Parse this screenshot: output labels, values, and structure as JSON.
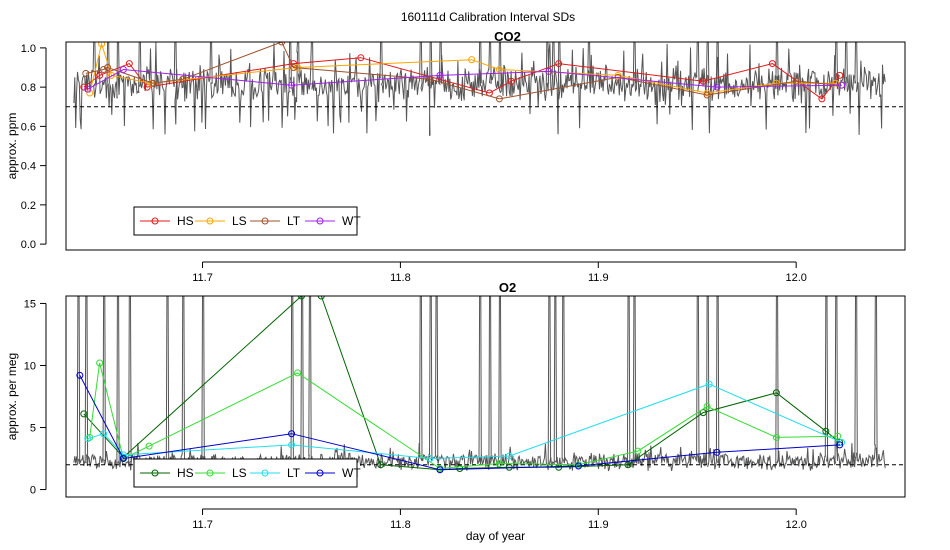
{
  "chart_data": [
    {
      "type": "line",
      "panel_id": "co2",
      "suptitle": "160111d   Calibration Interval SDs",
      "title": "CO2",
      "xlabel": "",
      "ylabel": "approx. ppm",
      "xlim": [
        11.631,
        12.055
      ],
      "ylim": [
        -0.03,
        1.03
      ],
      "xticks": [
        11.7,
        11.8,
        11.9,
        12.0
      ],
      "xtick_labels": [
        "11.7",
        "11.8",
        "11.9",
        "12.0"
      ],
      "yticks": [
        0.0,
        0.2,
        0.4,
        0.6,
        0.8,
        1.0
      ],
      "ytick_labels": [
        "0.0",
        "0.2",
        "0.4",
        "0.6",
        "0.8",
        "1.0"
      ],
      "reference_line": 0.7,
      "background_trace": {
        "name": "CO2 SD trace",
        "color": "#555555",
        "x_range": [
          11.635,
          12.045
        ],
        "baseline": 0.82,
        "noise": 0.07,
        "dips": 0.55,
        "spike_times": [
          11.645,
          11.652,
          11.657,
          11.668,
          11.686,
          11.704,
          11.744,
          11.748,
          11.755,
          11.79,
          11.81,
          11.815,
          11.82,
          11.84,
          11.845,
          11.85,
          11.874,
          11.877,
          11.88,
          11.895,
          11.918,
          11.95,
          11.955,
          11.96,
          11.99,
          12.02,
          12.025,
          12.03
        ],
        "spike_value": 1.03
      },
      "series": [
        {
          "name": "HS",
          "color": "#e41a1c",
          "x": [
            11.64,
            11.648,
            11.663,
            11.672,
            11.746,
            11.78,
            11.845,
            11.856,
            11.88,
            11.953,
            11.988,
            12.013,
            12.022
          ],
          "y": [
            0.8,
            0.86,
            0.92,
            0.8,
            0.92,
            0.95,
            0.77,
            0.83,
            0.92,
            0.83,
            0.92,
            0.74,
            0.86
          ]
        },
        {
          "name": "LS",
          "color": "#ffa500",
          "x": [
            11.643,
            11.649,
            11.654,
            11.674,
            11.748,
            11.836,
            11.85,
            11.91,
            11.955,
            11.99,
            12.02
          ],
          "y": [
            0.77,
            1.02,
            0.86,
            0.82,
            0.9,
            0.94,
            0.89,
            0.86,
            0.77,
            0.82,
            0.82
          ]
        },
        {
          "name": "LT",
          "color": "#a0522d",
          "x": [
            11.641,
            11.65,
            11.652,
            11.675,
            11.69,
            11.74,
            11.746,
            11.815,
            11.85,
            11.91,
            11.955,
            12.0,
            12.023
          ],
          "y": [
            0.87,
            0.89,
            0.9,
            0.82,
            0.84,
            1.03,
            0.9,
            0.84,
            0.74,
            0.85,
            0.76,
            0.83,
            0.81
          ]
        },
        {
          "name": "WT",
          "color": "#a020f0",
          "x": [
            11.642,
            11.66,
            11.745,
            11.82,
            11.875,
            11.96,
            12.023
          ],
          "y": [
            0.79,
            0.89,
            0.81,
            0.86,
            0.88,
            0.8,
            0.81
          ]
        }
      ],
      "legend": {
        "position": "bottom-left",
        "labels": [
          "HS",
          "LS",
          "LT",
          "WT"
        ]
      }
    },
    {
      "type": "line",
      "panel_id": "o2",
      "title": "O2",
      "xlabel": "day of year",
      "ylabel": "approx. per meg",
      "xlim": [
        11.631,
        12.055
      ],
      "ylim": [
        -0.6,
        15.6
      ],
      "xticks": [
        11.7,
        11.8,
        11.9,
        12.0
      ],
      "xtick_labels": [
        "11.7",
        "11.8",
        "11.9",
        "12.0"
      ],
      "yticks": [
        0,
        5,
        10,
        15
      ],
      "ytick_labels": [
        "0",
        "5",
        "10",
        "15"
      ],
      "reference_line": 2.0,
      "background_trace": {
        "name": "O2 SD trace",
        "color": "#555555",
        "x_range": [
          11.635,
          12.045
        ],
        "baseline": 2.3,
        "noise": 0.5,
        "dips": 1.5,
        "spike_times": [
          11.637,
          11.641,
          11.65,
          11.657,
          11.663,
          11.682,
          11.69,
          11.7,
          11.745,
          11.75,
          11.754,
          11.81,
          11.815,
          11.818,
          11.84,
          11.845,
          11.85,
          11.875,
          11.878,
          11.882,
          11.915,
          11.918,
          11.95,
          11.955,
          11.96,
          11.99,
          12.015,
          12.02,
          12.03,
          12.04
        ],
        "spike_value": 15.6
      },
      "series": [
        {
          "name": "HS",
          "color": "#006400",
          "x": [
            11.64,
            11.66,
            11.75,
            11.76,
            11.79,
            11.82,
            11.83,
            11.855,
            11.88,
            11.915,
            11.953,
            11.99,
            12.015,
            12.022
          ],
          "y": [
            6.1,
            2.6,
            15.6,
            15.6,
            2.0,
            1.6,
            1.7,
            1.8,
            1.8,
            2.0,
            6.2,
            7.8,
            4.7,
            3.8
          ]
        },
        {
          "name": "LS",
          "color": "#33dd33",
          "x": [
            11.643,
            11.648,
            11.66,
            11.673,
            11.748,
            11.82,
            11.85,
            11.89,
            11.92,
            11.955,
            11.99,
            12.021
          ],
          "y": [
            4.2,
            10.2,
            2.5,
            3.5,
            9.4,
            1.7,
            2.1,
            2.0,
            3.1,
            6.7,
            4.2,
            4.3
          ]
        },
        {
          "name": "LT",
          "color": "#22ddee",
          "x": [
            11.642,
            11.65,
            11.66,
            11.745,
            11.815,
            11.855,
            11.956,
            12.023
          ],
          "y": [
            4.1,
            4.5,
            2.8,
            3.6,
            2.5,
            2.7,
            8.5,
            3.8
          ]
        },
        {
          "name": "WT",
          "color": "#0000cd",
          "x": [
            11.638,
            11.66,
            11.745,
            11.82,
            11.89,
            11.96,
            12.022
          ],
          "y": [
            9.2,
            2.5,
            4.5,
            1.6,
            1.9,
            3.0,
            3.6
          ]
        }
      ],
      "legend": {
        "position": "bottom-left",
        "labels": [
          "HS",
          "LS",
          "LT",
          "WT"
        ]
      }
    }
  ]
}
